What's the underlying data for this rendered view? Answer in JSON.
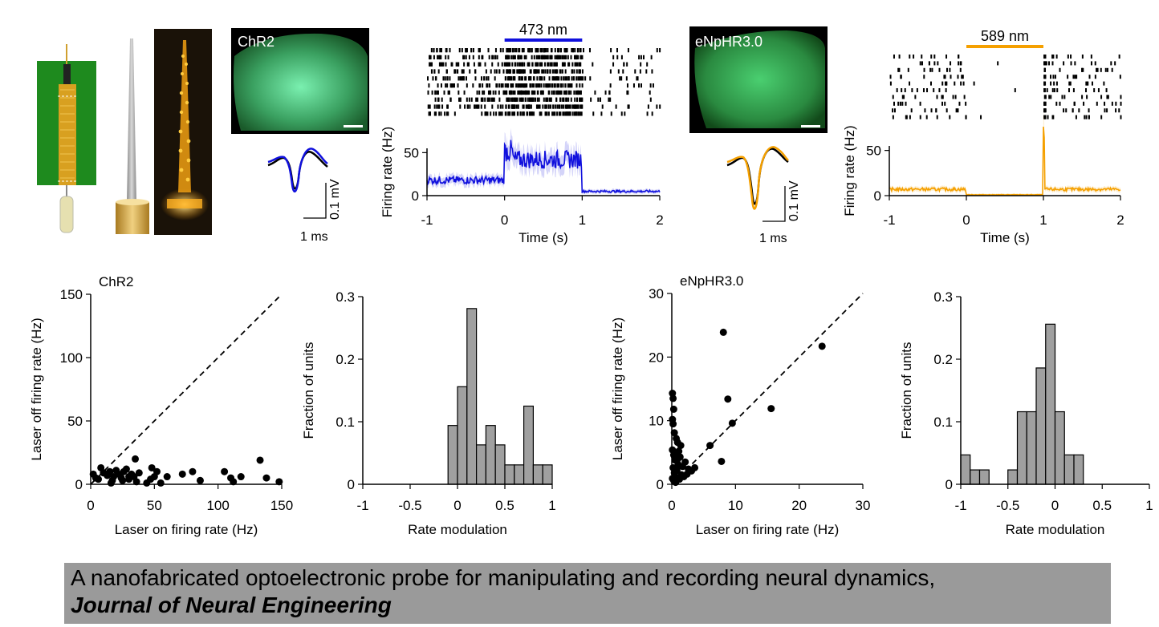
{
  "caption": {
    "title": "A nanofabricated optoelectronic probe for manipulating and recording neural dynamics,",
    "journal": "Journal of Neural Engineering"
  },
  "colors": {
    "chr2_trace": "#1010dd",
    "enphr_trace": "#f5a000",
    "hist_fill": "#a0a0a0",
    "probe_board": "#1e8a1e",
    "gold": "#e8b020"
  },
  "icons": [
    "probe-pcb-illustration",
    "probe-shank-render",
    "probe-led-glow-photo",
    "chr2-histology-image",
    "enphr-histology-image"
  ],
  "histology": {
    "chr2_label": "ChR2",
    "enphr_label": "eNpHR3.0"
  },
  "waveforms": {
    "chr2": {
      "x_scale": "1 ms",
      "y_scale": "0.1 mV"
    },
    "enphr": {
      "x_scale": "1 ms",
      "y_scale": "0.1 mV"
    }
  },
  "chart_data": [
    {
      "id": "chr2-psth",
      "type": "line",
      "laser_label": "473 nm",
      "laser_window": [
        0,
        1
      ],
      "xlabel": "Time (s)",
      "ylabel": "Firing rate (Hz)",
      "xlim": [
        -1,
        2
      ],
      "ylim": [
        0,
        60
      ],
      "xticks": [
        "-1",
        "0",
        "1",
        "2"
      ],
      "yticks": [
        "0",
        "50"
      ],
      "segments": [
        {
          "range": [
            -1,
            0
          ],
          "mean": 18
        },
        {
          "range": [
            0,
            0.1
          ],
          "mean": 52
        },
        {
          "range": [
            0.1,
            1
          ],
          "mean": 42
        },
        {
          "range": [
            1,
            2
          ],
          "mean": 5
        }
      ],
      "raster": "spike raster above PSTH"
    },
    {
      "id": "enphr-psth",
      "type": "line",
      "laser_label": "589 nm",
      "laser_window": [
        0,
        1
      ],
      "xlabel": "Time (s)",
      "ylabel": "Firing rate (Hz)",
      "xlim": [
        -1,
        2
      ],
      "ylim": [
        0,
        60
      ],
      "xticks": [
        "-1",
        "0",
        "1",
        "2"
      ],
      "yticks": [
        "0",
        "50"
      ],
      "segments": [
        {
          "range": [
            -1,
            0
          ],
          "mean": 7
        },
        {
          "range": [
            0,
            1
          ],
          "mean": 1
        },
        {
          "range": [
            1,
            1.02
          ],
          "mean": 62
        },
        {
          "range": [
            1.02,
            2
          ],
          "mean": 7
        }
      ],
      "raster": "spike raster above PSTH"
    },
    {
      "id": "chr2-scatter",
      "type": "scatter",
      "title": "ChR2",
      "xlabel": "Laser on firing rate (Hz)",
      "ylabel": "Laser off firing rate (Hz)",
      "xlim": [
        0,
        150
      ],
      "ylim": [
        0,
        150
      ],
      "xticks": [
        "0",
        "50",
        "100",
        "150"
      ],
      "yticks": [
        "0",
        "50",
        "100",
        "150"
      ],
      "identity_line": true,
      "points": [
        [
          2,
          8
        ],
        [
          4,
          5
        ],
        [
          6,
          4
        ],
        [
          8,
          13
        ],
        [
          10,
          9
        ],
        [
          13,
          7
        ],
        [
          15,
          10
        ],
        [
          17,
          3
        ],
        [
          18,
          6
        ],
        [
          20,
          11
        ],
        [
          22,
          8
        ],
        [
          24,
          5
        ],
        [
          26,
          10
        ],
        [
          28,
          12
        ],
        [
          30,
          4
        ],
        [
          32,
          8
        ],
        [
          34,
          6
        ],
        [
          35,
          20
        ],
        [
          38,
          9
        ],
        [
          44,
          1
        ],
        [
          47,
          4
        ],
        [
          48,
          13
        ],
        [
          50,
          6
        ],
        [
          52,
          10
        ],
        [
          55,
          1
        ],
        [
          60,
          6
        ],
        [
          72,
          8
        ],
        [
          80,
          10
        ],
        [
          86,
          3
        ],
        [
          105,
          10
        ],
        [
          110,
          5
        ],
        [
          112,
          2
        ],
        [
          118,
          6
        ],
        [
          133,
          19
        ],
        [
          138,
          5
        ],
        [
          148,
          2
        ],
        [
          25,
          3
        ],
        [
          30,
          6
        ],
        [
          36,
          2
        ],
        [
          16,
          1
        ]
      ]
    },
    {
      "id": "chr2-hist",
      "type": "bar",
      "xlabel": "Rate modulation",
      "ylabel": "Fraction of units",
      "xlim": [
        -1,
        1
      ],
      "ylim": [
        0,
        0.3
      ],
      "xticks": [
        "-1",
        "-0.5",
        "0",
        "0.5",
        "1"
      ],
      "yticks": [
        "0",
        "0.1",
        "0.2",
        "0.3"
      ],
      "bin_edges": [
        -0.1,
        0,
        0.1,
        0.2,
        0.3,
        0.4,
        0.5,
        0.6,
        0.7,
        0.8,
        0.9,
        1.0
      ],
      "values": [
        0.094,
        0.156,
        0.281,
        0.063,
        0.094,
        0.063,
        0.031,
        0.031,
        0.125,
        0.031,
        0.031
      ]
    },
    {
      "id": "enphr-scatter",
      "type": "scatter",
      "title": "eNpHR3.0",
      "xlabel": "Laser on firing rate (Hz)",
      "ylabel": "Laser off firing rate (Hz)",
      "xlim": [
        0,
        30
      ],
      "ylim": [
        0,
        30
      ],
      "xticks": [
        "0",
        "10",
        "20",
        "30"
      ],
      "yticks": [
        "0",
        "10",
        "20",
        "30"
      ],
      "identity_line": true,
      "points": [
        [
          0.1,
          14.3
        ],
        [
          0.2,
          13.5
        ],
        [
          0.3,
          11.8
        ],
        [
          0.1,
          10.2
        ],
        [
          0.2,
          9.5
        ],
        [
          0.4,
          8.1
        ],
        [
          0.1,
          5.4
        ],
        [
          0.3,
          4.6
        ],
        [
          0.5,
          3.8
        ],
        [
          0.2,
          2.6
        ],
        [
          0.4,
          1.8
        ],
        [
          0.1,
          0.9
        ],
        [
          0.7,
          7.2
        ],
        [
          0.9,
          6.6
        ],
        [
          1.1,
          5.2
        ],
        [
          1.3,
          4.3
        ],
        [
          1.0,
          3.1
        ],
        [
          0.8,
          2.2
        ],
        [
          1.5,
          1.5
        ],
        [
          1.7,
          2.8
        ],
        [
          2.1,
          3.5
        ],
        [
          2.6,
          2.4
        ],
        [
          3.1,
          2.1
        ],
        [
          3.6,
          2.6
        ],
        [
          1.2,
          0.8
        ],
        [
          0.6,
          1.1
        ],
        [
          0.3,
          0.6
        ],
        [
          1.9,
          1.2
        ],
        [
          6.0,
          6.1
        ],
        [
          7.8,
          3.6
        ],
        [
          8.1,
          23.9
        ],
        [
          8.8,
          13.4
        ],
        [
          9.5,
          9.6
        ],
        [
          15.6,
          11.9
        ],
        [
          23.6,
          21.7
        ],
        [
          0.5,
          4.9
        ],
        [
          0.9,
          3.9
        ],
        [
          1.4,
          6.1
        ],
        [
          2.4,
          1.6
        ],
        [
          0.6,
          0.3
        ]
      ]
    },
    {
      "id": "enphr-hist",
      "type": "bar",
      "xlabel": "Rate modulation",
      "ylabel": "Fraction of units",
      "xlim": [
        -1,
        1
      ],
      "ylim": [
        0,
        0.3
      ],
      "xticks": [
        "-1",
        "-0.5",
        "0",
        "0.5",
        "1"
      ],
      "yticks": [
        "0",
        "0.1",
        "0.2",
        "0.3"
      ],
      "bin_edges": [
        -1.0,
        -0.9,
        -0.8,
        -0.7,
        -0.6,
        -0.5,
        -0.4,
        -0.3,
        -0.2,
        -0.1,
        0,
        0.1,
        0.2,
        0.3
      ],
      "values": [
        0.047,
        0.023,
        0.023,
        0,
        0,
        0.023,
        0.116,
        0.116,
        0.186,
        0.256,
        0.116,
        0.047,
        0.047
      ]
    }
  ]
}
